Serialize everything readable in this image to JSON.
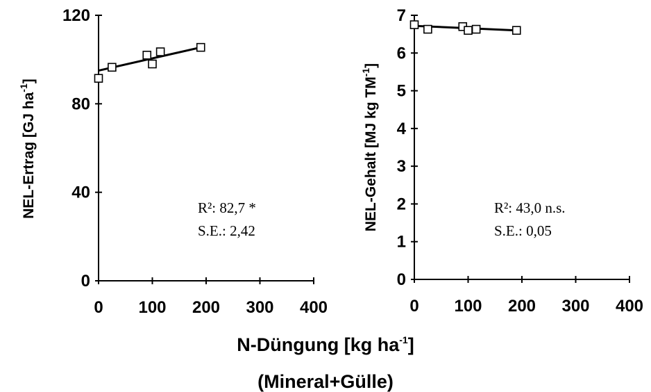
{
  "xlabel": {
    "main": "N-Düngung [kg ha",
    "sup": "-1",
    "end": "]"
  },
  "xlabel2": "(Mineral+Gülle)",
  "chart_data": [
    {
      "type": "scatter",
      "ylabel": {
        "main": "NEL-Ertrag [GJ ha",
        "sup": "-1",
        "end": "]"
      },
      "xlim": [
        0,
        400
      ],
      "ylim": [
        0,
        120
      ],
      "xticks": [
        "0",
        "100",
        "200",
        "300",
        "400"
      ],
      "yticks": [
        "0",
        "40",
        "80",
        "120"
      ],
      "ytick_values": [
        0,
        40,
        80,
        120
      ],
      "points": [
        {
          "x": 0,
          "y": 91.5
        },
        {
          "x": 25,
          "y": 96.5
        },
        {
          "x": 90,
          "y": 102
        },
        {
          "x": 100,
          "y": 98
        },
        {
          "x": 115,
          "y": 103.5
        },
        {
          "x": 190,
          "y": 105.5
        }
      ],
      "trend": [
        {
          "x": 0,
          "y": 95
        },
        {
          "x": 190,
          "y": 105.5
        }
      ],
      "annotation": [
        "R²: 82,7 *",
        "S.E.: 2,42"
      ]
    },
    {
      "type": "scatter",
      "ylabel": {
        "main": "NEL-Gehalt [MJ kg TM",
        "sup": "-1",
        "end": "]"
      },
      "xlim": [
        0,
        400
      ],
      "ylim": [
        0,
        7
      ],
      "xticks": [
        "0",
        "100",
        "200",
        "300",
        "400"
      ],
      "yticks": [
        "0",
        "1",
        "2",
        "3",
        "4",
        "5",
        "6",
        "7"
      ],
      "ytick_values": [
        0,
        1,
        2,
        3,
        4,
        5,
        6,
        7
      ],
      "points": [
        {
          "x": 0,
          "y": 6.75
        },
        {
          "x": 25,
          "y": 6.63
        },
        {
          "x": 90,
          "y": 6.7
        },
        {
          "x": 100,
          "y": 6.6
        },
        {
          "x": 115,
          "y": 6.63
        },
        {
          "x": 190,
          "y": 6.6
        }
      ],
      "trend": [
        {
          "x": 0,
          "y": 6.72
        },
        {
          "x": 190,
          "y": 6.6
        }
      ],
      "annotation": [
        "R²: 43,0 n.s.",
        "S.E.: 0,05"
      ]
    }
  ]
}
